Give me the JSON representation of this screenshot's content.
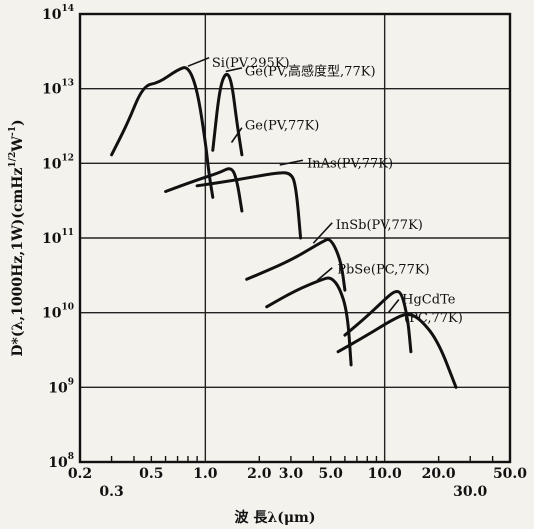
{
  "chart_data": {
    "type": "line",
    "x_scale": "log",
    "y_scale": "log",
    "xlim": [
      0.2,
      50.0
    ],
    "ylim": [
      100000000.0,
      100000000000000.0
    ],
    "grid": true,
    "ylabel": "D*(λ,1000Hz,1W)(cmHz1/2W-1)",
    "ylabel_parts": {
      "main": "D*(λ,1000Hz,1W)(cmHz",
      "sup1": "1/2",
      "mid": "W",
      "sup2": "-1",
      "end": ")"
    },
    "xlabel": "波 長λ(μm)",
    "x_ticks_top": [
      {
        "v": 0.2,
        "label": "0.2"
      },
      {
        "v": 0.5,
        "label": "0.5"
      },
      {
        "v": 1.0,
        "label": "1.0"
      },
      {
        "v": 2.0,
        "label": "2.0"
      },
      {
        "v": 3.0,
        "label": "3.0"
      },
      {
        "v": 5.0,
        "label": "5.0"
      },
      {
        "v": 10.0,
        "label": "10.0"
      },
      {
        "v": 20.0,
        "label": "20.0"
      },
      {
        "v": 50.0,
        "label": "50.0"
      }
    ],
    "x_ticks_bottom": [
      {
        "v": 0.3,
        "label": "0.3"
      },
      {
        "v": 30.0,
        "label": "30.0"
      }
    ],
    "y_ticks": [
      {
        "exp": 8,
        "base": "10",
        "power": "8"
      },
      {
        "exp": 9,
        "base": "10",
        "power": "9"
      },
      {
        "exp": 10,
        "base": "10",
        "power": "10"
      },
      {
        "exp": 11,
        "base": "10",
        "power": "11"
      },
      {
        "exp": 12,
        "base": "10",
        "power": "12"
      },
      {
        "exp": 13,
        "base": "10",
        "power": "13"
      },
      {
        "exp": 14,
        "base": "10",
        "power": "14"
      }
    ],
    "series": [
      {
        "name": "Si(PV,295K)",
        "points": [
          [
            0.3,
            1300000000000.0
          ],
          [
            0.37,
            3500000000000.0
          ],
          [
            0.45,
            11000000000000.0
          ],
          [
            0.55,
            12000000000000.0
          ],
          [
            0.7,
            18000000000000.0
          ],
          [
            0.8,
            20000000000000.0
          ],
          [
            0.9,
            10000000000000.0
          ],
          [
            1.0,
            2000000000000.0
          ],
          [
            1.05,
            700000000000.0
          ],
          [
            1.1,
            350000000000.0
          ]
        ],
        "label": {
          "text": "Si(PV,295K)",
          "at": [
            1.06,
            22000000000000.0
          ]
        },
        "leader": [
          [
            0.8,
            20000000000000.0
          ],
          [
            1.05,
            26000000000000.0
          ]
        ]
      },
      {
        "name": "Ge(PV,高感度型,77K)",
        "points": [
          [
            1.1,
            1500000000000.0
          ],
          [
            1.2,
            10000000000000.0
          ],
          [
            1.3,
            17000000000000.0
          ],
          [
            1.4,
            13000000000000.0
          ],
          [
            1.5,
            3500000000000.0
          ],
          [
            1.6,
            1300000000000.0
          ]
        ],
        "label": {
          "text": "Ge(PV,高感度型,77K)",
          "at": [
            1.62,
            17000000000000.0
          ]
        },
        "leader": [
          [
            1.3,
            17000000000000.0
          ],
          [
            1.6,
            19000000000000.0
          ]
        ]
      },
      {
        "name": "Ge(PV,77K)",
        "points": [
          [
            0.6,
            420000000000.0
          ],
          [
            0.9,
            600000000000.0
          ],
          [
            1.2,
            750000000000.0
          ],
          [
            1.4,
            900000000000.0
          ],
          [
            1.5,
            600000000000.0
          ],
          [
            1.6,
            230000000000.0
          ]
        ],
        "label": {
          "text": "Ge(PV,77K)",
          "at": [
            1.62,
            3200000000000.0
          ]
        },
        "leader": [
          [
            1.4,
            1900000000000.0
          ],
          [
            1.6,
            3000000000000.0
          ]
        ]
      },
      {
        "name": "InAs(PV,77K)",
        "points": [
          [
            0.9,
            500000000000.0
          ],
          [
            1.5,
            600000000000.0
          ],
          [
            2.5,
            750000000000.0
          ],
          [
            3.0,
            750000000000.0
          ],
          [
            3.2,
            500000000000.0
          ],
          [
            3.4,
            100000000000.0
          ]
        ],
        "label": {
          "text": "InAs(PV,77K)",
          "at": [
            3.6,
            1000000000000.0
          ]
        },
        "leader": [
          [
            2.6,
            950000000000.0
          ],
          [
            3.5,
            1100000000000.0
          ]
        ]
      },
      {
        "name": "InSb(PV,77K)",
        "points": [
          [
            1.7,
            28000000000.0
          ],
          [
            3.0,
            50000000000.0
          ],
          [
            4.5,
            90000000000.0
          ],
          [
            5.0,
            100000000000.0
          ],
          [
            5.7,
            50000000000.0
          ],
          [
            6.0,
            20000000000.0
          ]
        ],
        "label": {
          "text": "InSb(PV,77K)",
          "at": [
            5.2,
            150000000000.0
          ]
        },
        "leader": [
          [
            4.0,
            85000000000.0
          ],
          [
            5.1,
            160000000000.0
          ]
        ]
      },
      {
        "name": "PbSe(PC,77K)",
        "points": [
          [
            2.2,
            12000000000.0
          ],
          [
            3.2,
            20000000000.0
          ],
          [
            4.5,
            28000000000.0
          ],
          [
            5.0,
            30000000000.0
          ],
          [
            5.6,
            22000000000.0
          ],
          [
            6.2,
            10000000000.0
          ],
          [
            6.5,
            2000000000.0
          ]
        ],
        "label": {
          "text": "PbSe(PC,77K)",
          "at": [
            5.3,
            38000000000.0
          ]
        },
        "leader": [
          [
            4.2,
            27000000000.0
          ],
          [
            5.1,
            40000000000.0
          ]
        ]
      },
      {
        "name": "HgCdTe(PC,77K)",
        "points": [
          [
            6.0,
            5000000000.0
          ],
          [
            8.0,
            9000000000.0
          ],
          [
            10.0,
            15000000000.0
          ],
          [
            11.5,
            20000000000.0
          ],
          [
            12.5,
            18000000000.0
          ],
          [
            13.5,
            8000000000.0
          ],
          [
            14.0,
            3000000000.0
          ]
        ],
        "label": {
          "text": "HgCdTe",
          "at": [
            12.2,
            15000000000.0
          ]
        },
        "leader": [
          [
            10.5,
            10000000000.0
          ],
          [
            12.0,
            15000000000.0
          ]
        ]
      },
      {
        "name": "HgCdTe(PC,77K)",
        "points": [
          [
            5.5,
            3000000000.0
          ],
          [
            8.0,
            5000000000.0
          ],
          [
            11.0,
            8000000000.0
          ],
          [
            13.5,
            10000000000.0
          ],
          [
            16.0,
            8000000000.0
          ],
          [
            20.0,
            4000000000.0
          ],
          [
            25.0,
            1000000000.0
          ]
        ],
        "label": {
          "text": "(PC,77K)",
          "at": [
            12.5,
            8500000000.0
          ]
        },
        "leader": [
          [
            11.0,
            8000000000.0
          ],
          [
            12.3,
            9000000000.0
          ]
        ]
      }
    ]
  }
}
